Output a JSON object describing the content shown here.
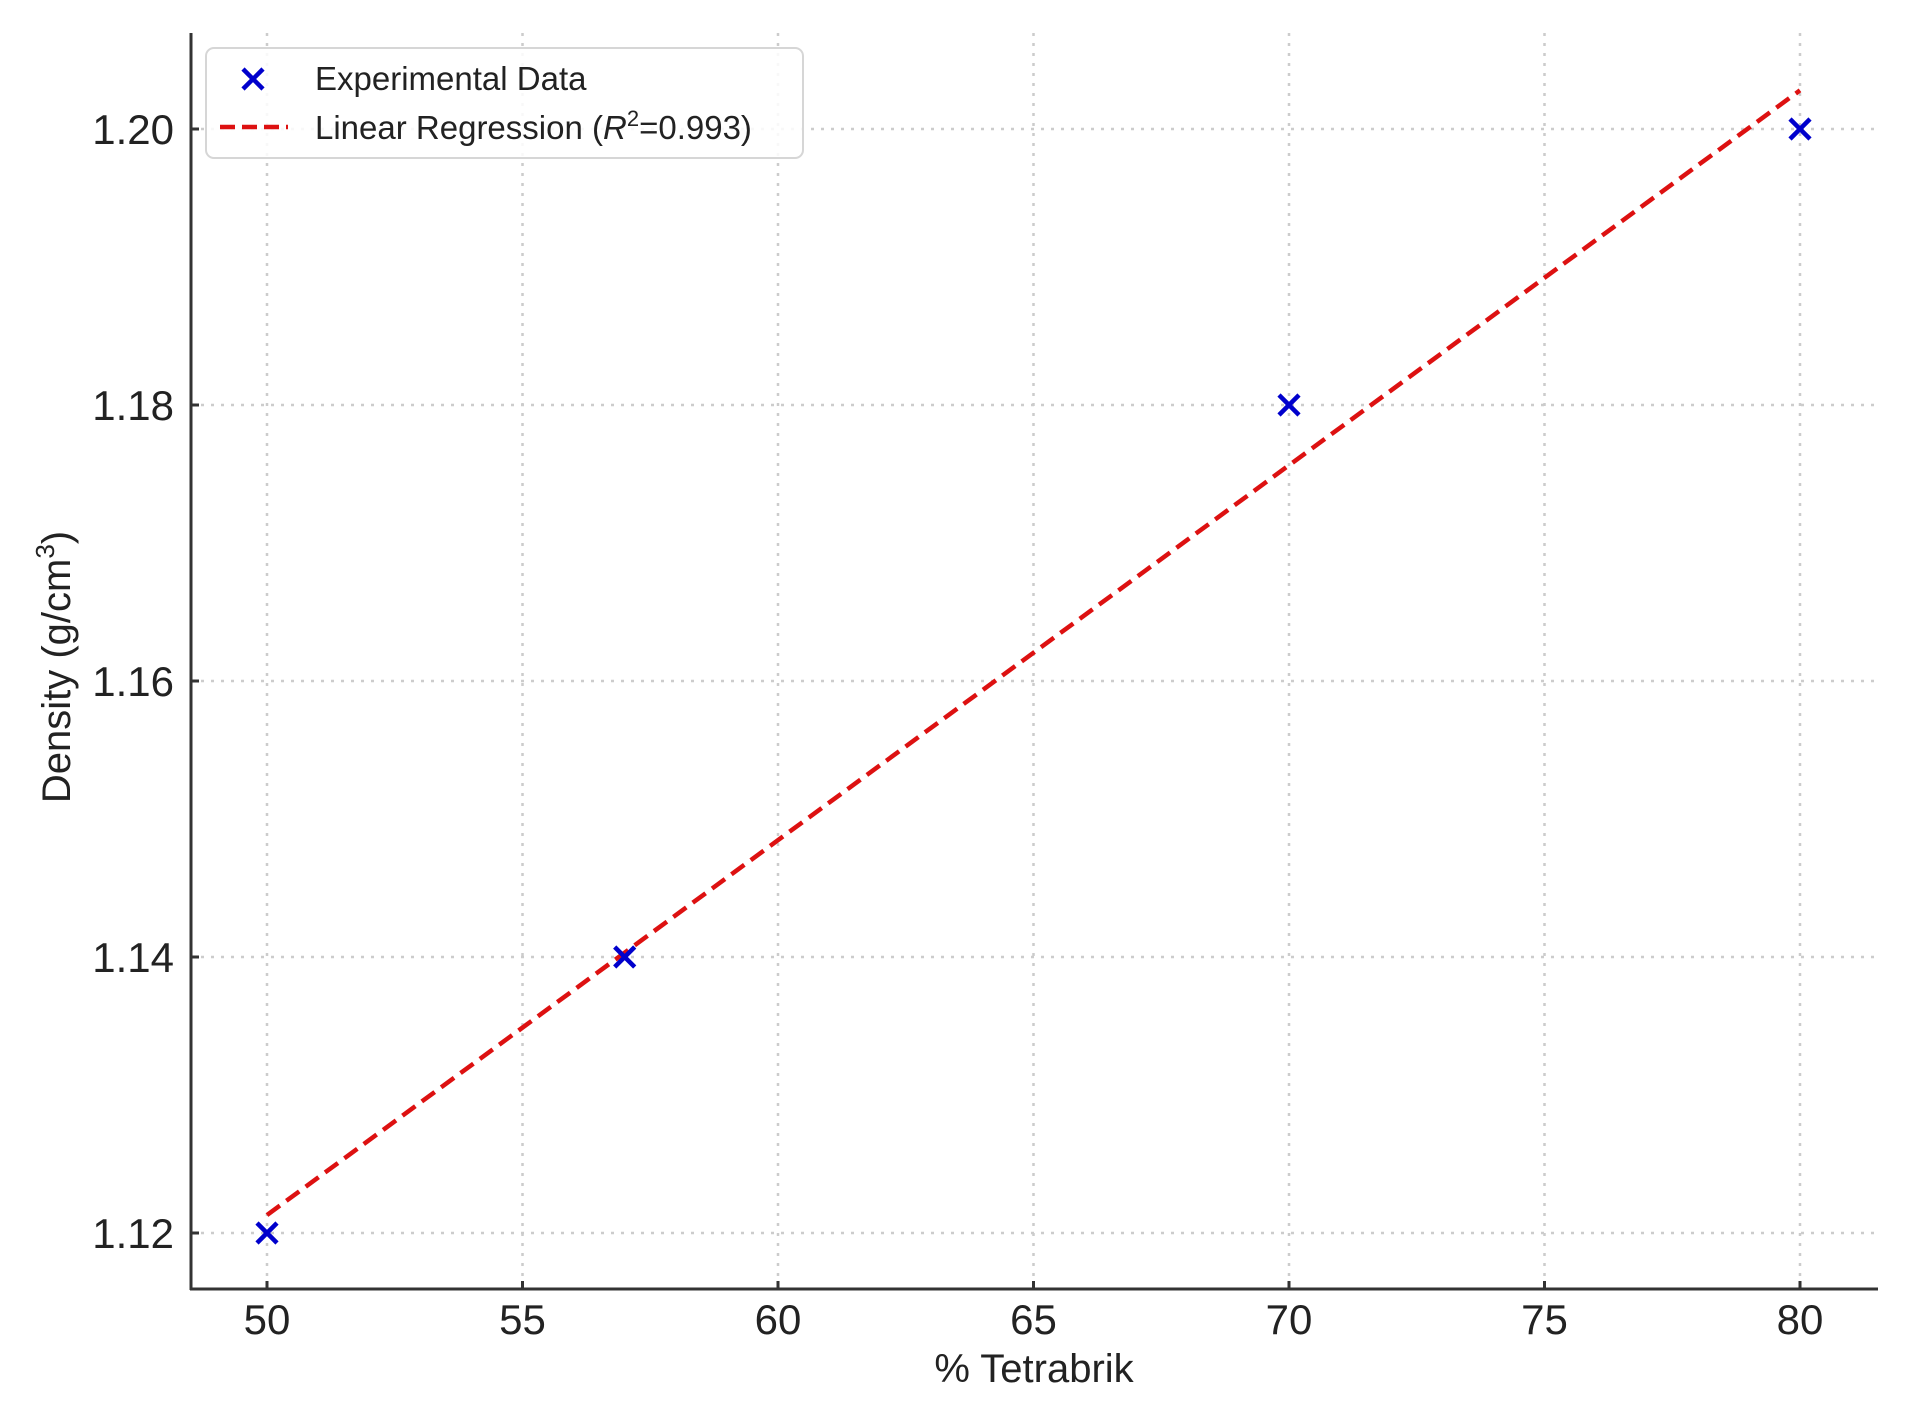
{
  "chart_data": {
    "type": "scatter",
    "title": "",
    "xlabel": "% Tetrabrik",
    "ylabel": "Density (g/cm³)",
    "xlim": [
      48.5,
      81.5
    ],
    "ylim": [
      1.1165,
      1.2067
    ],
    "grid": true,
    "legend_position": "upper left",
    "x_ticks": [
      50,
      55,
      60,
      65,
      70,
      75,
      80
    ],
    "x_tick_labels": [
      "50",
      "55",
      "60",
      "65",
      "70",
      "75",
      "80"
    ],
    "y_ticks": [
      1.12,
      1.14,
      1.16,
      1.18,
      1.2
    ],
    "y_tick_labels": [
      "1.12",
      "1.14",
      "1.16",
      "1.18",
      "1.20"
    ],
    "series": [
      {
        "name": "Experimental Data",
        "kind": "scatter",
        "marker": "x",
        "color": "#0000cc",
        "x": [
          50,
          57,
          70,
          80
        ],
        "y": [
          1.12,
          1.14,
          1.18,
          1.2
        ]
      },
      {
        "name": "Linear Regression (R²=0.993)",
        "kind": "line",
        "style": "dashed",
        "color": "#dd1111",
        "x": [
          50,
          80
        ],
        "y": [
          1.1213,
          1.2028
        ]
      }
    ],
    "legend": [
      {
        "label": "Experimental Data",
        "marker": "x",
        "color": "#0000cc"
      },
      {
        "label_prefix": "Linear Regression (",
        "label_italic": "R",
        "label_sup": "2",
        "label_suffix": "=0.993)",
        "marker": "dashed-line",
        "color": "#dd1111"
      }
    ],
    "colors": {
      "axis": "#333333",
      "grid": "#cccccc",
      "text": "#222222",
      "legend_border": "#d6d6d6"
    }
  }
}
